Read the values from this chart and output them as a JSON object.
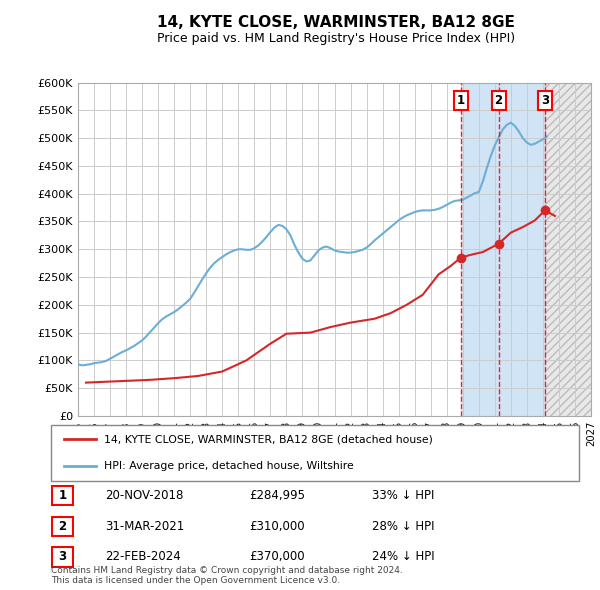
{
  "title": "14, KYTE CLOSE, WARMINSTER, BA12 8GE",
  "subtitle": "Price paid vs. HM Land Registry's House Price Index (HPI)",
  "ylabel_ticks": [
    "£0",
    "£50K",
    "£100K",
    "£150K",
    "£200K",
    "£250K",
    "£300K",
    "£350K",
    "£400K",
    "£450K",
    "£500K",
    "£550K",
    "£600K"
  ],
  "ytick_values": [
    0,
    50000,
    100000,
    150000,
    200000,
    250000,
    300000,
    350000,
    400000,
    450000,
    500000,
    550000,
    600000
  ],
  "xlim_years": [
    1995,
    2027
  ],
  "ylim": [
    0,
    600000
  ],
  "hpi_color": "#6baed6",
  "price_color": "#d62728",
  "transactions": [
    {
      "label": "1",
      "date": "20-NOV-2018",
      "price": 284995,
      "pct": "33%",
      "year_x": 2018.88
    },
    {
      "label": "2",
      "date": "31-MAR-2021",
      "price": 310000,
      "pct": "28%",
      "year_x": 2021.24
    },
    {
      "label": "3",
      "date": "22-FEB-2024",
      "price": 370000,
      "pct": "24%",
      "year_x": 2024.13
    }
  ],
  "legend_line1": "14, KYTE CLOSE, WARMINSTER, BA12 8GE (detached house)",
  "legend_line2": "HPI: Average price, detached house, Wiltshire",
  "footnote": "Contains HM Land Registry data © Crown copyright and database right 2024.\nThis data is licensed under the Open Government Licence v3.0.",
  "hpi_years": [
    1995.0,
    1995.25,
    1995.5,
    1995.75,
    1996.0,
    1996.25,
    1996.5,
    1996.75,
    1997.0,
    1997.25,
    1997.5,
    1997.75,
    1998.0,
    1998.25,
    1998.5,
    1998.75,
    1999.0,
    1999.25,
    1999.5,
    1999.75,
    2000.0,
    2000.25,
    2000.5,
    2000.75,
    2001.0,
    2001.25,
    2001.5,
    2001.75,
    2002.0,
    2002.25,
    2002.5,
    2002.75,
    2003.0,
    2003.25,
    2003.5,
    2003.75,
    2004.0,
    2004.25,
    2004.5,
    2004.75,
    2005.0,
    2005.25,
    2005.5,
    2005.75,
    2006.0,
    2006.25,
    2006.5,
    2006.75,
    2007.0,
    2007.25,
    2007.5,
    2007.75,
    2008.0,
    2008.25,
    2008.5,
    2008.75,
    2009.0,
    2009.25,
    2009.5,
    2009.75,
    2010.0,
    2010.25,
    2010.5,
    2010.75,
    2011.0,
    2011.25,
    2011.5,
    2011.75,
    2012.0,
    2012.25,
    2012.5,
    2012.75,
    2013.0,
    2013.25,
    2013.5,
    2013.75,
    2014.0,
    2014.25,
    2014.5,
    2014.75,
    2015.0,
    2015.25,
    2015.5,
    2015.75,
    2016.0,
    2016.25,
    2016.5,
    2016.75,
    2017.0,
    2017.25,
    2017.5,
    2017.75,
    2018.0,
    2018.25,
    2018.5,
    2018.75,
    2019.0,
    2019.25,
    2019.5,
    2019.75,
    2020.0,
    2020.25,
    2020.5,
    2020.75,
    2021.0,
    2021.25,
    2021.5,
    2021.75,
    2022.0,
    2022.25,
    2022.5,
    2022.75,
    2023.0,
    2023.25,
    2023.5,
    2023.75,
    2024.0,
    2024.25
  ],
  "hpi_values": [
    93000,
    91000,
    92000,
    93000,
    95000,
    96000,
    97000,
    99000,
    103000,
    107000,
    111000,
    115000,
    118000,
    122000,
    126000,
    131000,
    136000,
    143000,
    151000,
    159000,
    167000,
    174000,
    179000,
    183000,
    187000,
    192000,
    198000,
    204000,
    211000,
    222000,
    234000,
    246000,
    257000,
    267000,
    275000,
    281000,
    286000,
    291000,
    295000,
    298000,
    300000,
    300000,
    299000,
    299000,
    302000,
    307000,
    314000,
    322000,
    331000,
    339000,
    344000,
    342000,
    336000,
    325000,
    308000,
    294000,
    283000,
    278000,
    280000,
    289000,
    298000,
    303000,
    305000,
    302000,
    298000,
    296000,
    295000,
    294000,
    294000,
    295000,
    297000,
    299000,
    303000,
    309000,
    316000,
    322000,
    328000,
    334000,
    340000,
    346000,
    352000,
    357000,
    361000,
    364000,
    367000,
    369000,
    370000,
    370000,
    370000,
    371000,
    373000,
    376000,
    380000,
    384000,
    387000,
    388000,
    389000,
    393000,
    397000,
    401000,
    403000,
    422000,
    446000,
    468000,
    487000,
    502000,
    516000,
    524000,
    528000,
    522000,
    512000,
    500000,
    492000,
    488000,
    490000,
    494000,
    498000,
    503000
  ],
  "price_series_years": [
    1995.5,
    1999.5,
    2001.0,
    2002.5,
    2004.0,
    2005.5,
    2007.0,
    2008.0,
    2009.5,
    2010.75,
    2012.0,
    2013.5,
    2014.5,
    2015.5,
    2016.5,
    2017.5,
    2018.25,
    2018.88,
    2019.5,
    2020.25,
    2021.24,
    2022.0,
    2022.75,
    2023.5,
    2024.13,
    2024.75
  ],
  "price_series_values": [
    60000,
    65000,
    68000,
    72000,
    80000,
    100000,
    130000,
    148000,
    150000,
    160000,
    168000,
    175000,
    185000,
    200000,
    218000,
    255000,
    270000,
    284995,
    290000,
    295000,
    310000,
    330000,
    340000,
    352000,
    370000,
    360000
  ],
  "background_color": "#ffffff",
  "grid_color": "#cccccc",
  "region1_color": "#d0e4f5",
  "region2_color": "#d0e4f5",
  "region3_color": "#e8e8e8",
  "region1_x0": 2018.88,
  "region1_x1": 2021.24,
  "region2_x0": 2021.24,
  "region2_x1": 2024.13,
  "region3_x0": 2024.13,
  "region3_x1": 2027.0
}
